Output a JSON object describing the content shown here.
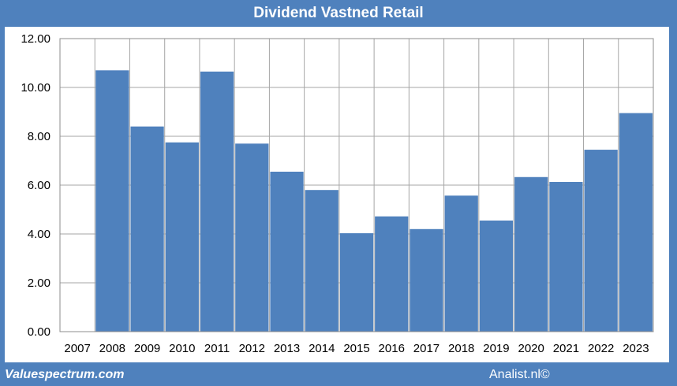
{
  "chart_data": {
    "type": "bar",
    "title": "Dividend Vastned Retail",
    "categories": [
      "2007",
      "2008",
      "2009",
      "2010",
      "2011",
      "2012",
      "2013",
      "2014",
      "2015",
      "2016",
      "2017",
      "2018",
      "2019",
      "2020",
      "2021",
      "2022",
      "2023"
    ],
    "values": [
      0,
      10.7,
      8.4,
      7.75,
      10.65,
      7.7,
      6.55,
      5.8,
      4.03,
      4.72,
      4.2,
      5.57,
      4.55,
      6.33,
      6.13,
      7.45,
      8.95
    ],
    "ylim": [
      0,
      12
    ],
    "yticks": [
      "0.00",
      "2.00",
      "4.00",
      "6.00",
      "8.00",
      "10.00",
      "12.00"
    ],
    "xlabel": "",
    "ylabel": "",
    "grid": true,
    "bar_color": "#4f81bd",
    "background_color": "#4f81bd"
  },
  "footer": {
    "source_left": "Valuespectrum.com",
    "source_right": "Analist.nl©"
  }
}
